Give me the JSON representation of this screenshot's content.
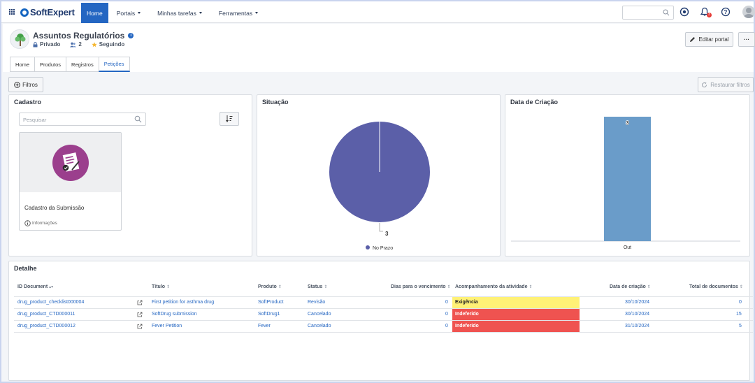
{
  "app": {
    "brand": "SoftExpert",
    "nav": [
      {
        "label": "Home",
        "active": true
      },
      {
        "label": "Portais"
      },
      {
        "label": "Minhas tarefas"
      },
      {
        "label": "Ferramentas"
      }
    ],
    "notification_count": "3",
    "colors": {
      "primary": "#2466c2",
      "brand": "#1f3a6e"
    }
  },
  "portal": {
    "title": "Assuntos Regulatórios",
    "privacy": "Privado",
    "members": "2",
    "following": "Seguindo",
    "edit_label": "Editar portal",
    "more_label": "···",
    "tabs": [
      "Home",
      "Produtos",
      "Registros",
      "Petições"
    ]
  },
  "toolbar": {
    "filters_label": "Filtros",
    "restore_label": "Restaurar filtros"
  },
  "cadastro": {
    "title": "Cadastro",
    "search_placeholder": "Pesquisar",
    "card_title": "Cadastro da Submissão",
    "card_info": "Informações"
  },
  "situacao": {
    "title": "Situação",
    "chart_data": {
      "type": "pie",
      "title": "Situação",
      "series": [
        {
          "name": "No Prazo",
          "value": 3,
          "color": "#5b5fa8"
        }
      ],
      "data_label": "3",
      "legend": [
        "No Prazo"
      ],
      "legend_position": "bottom"
    }
  },
  "criacao": {
    "title": "Data de Criação",
    "chart_data": {
      "type": "bar",
      "title": "Data de Criação",
      "categories": [
        "Out"
      ],
      "values": [
        3
      ],
      "data_label": "3",
      "color": "#6a9cc9",
      "ylim": [
        0,
        3
      ]
    }
  },
  "detalhe": {
    "title": "Detalhe",
    "columns": [
      "ID Document",
      "Título",
      "Produto",
      "Status",
      "Dias para o vencimento",
      "Acompanhamento da atividade",
      "Data de criação",
      "Total de documentos"
    ],
    "rows": [
      {
        "id": "drug_product_checklist000004",
        "titulo": "First petition for asthma drug",
        "produto": "SoftProduct",
        "status": "Revisão",
        "dias": "0",
        "acompanhamento": "Exigência",
        "acomp_color": "#fff176",
        "data": "30/10/2024",
        "total": "0"
      },
      {
        "id": "drug_product_CTD000011",
        "titulo": "SoftDrug submission",
        "produto": "SoftDrug1",
        "status": "Cancelado",
        "dias": "0",
        "acompanhamento": "Indeferido",
        "acomp_color": "#ef5350",
        "data": "30/10/2024",
        "total": "15"
      },
      {
        "id": "drug_product_CTD000012",
        "titulo": "Fever Petition",
        "produto": "Fever",
        "status": "Cancelado",
        "dias": "0",
        "acompanhamento": "Indeferido",
        "acomp_color": "#ef5350",
        "data": "31/10/2024",
        "total": "5"
      }
    ]
  }
}
